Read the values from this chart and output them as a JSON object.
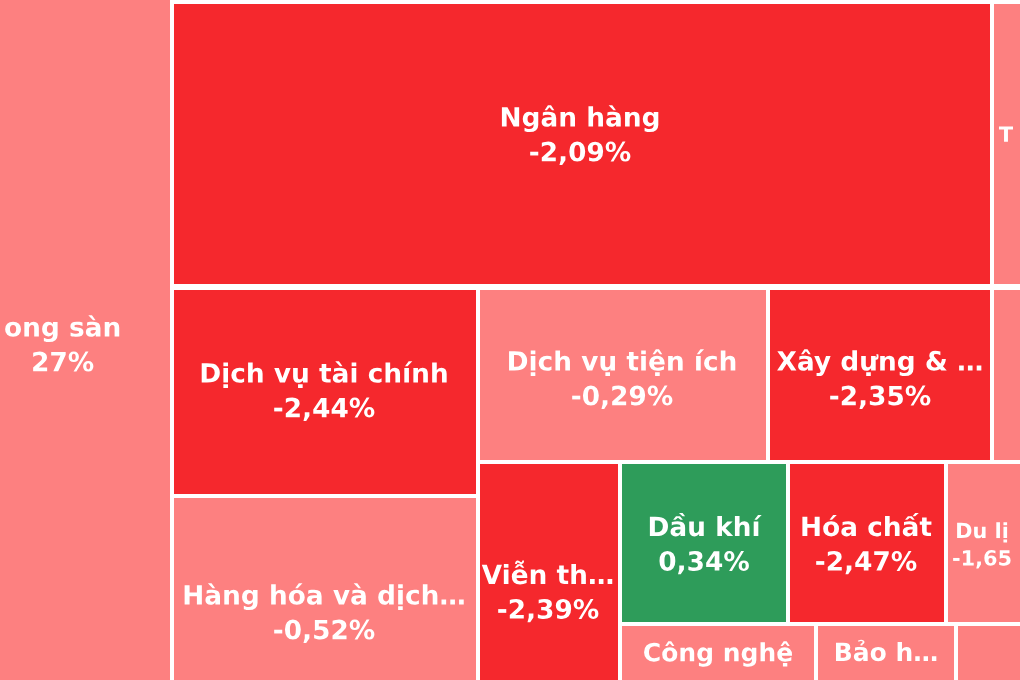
{
  "chart_data": {
    "type": "other",
    "categories": [
      "ong sàn",
      "Ngân hàng",
      "T",
      "Dịch vụ tài chính",
      "Dịch vụ tiện ích",
      "Xây dựng & …",
      null,
      "Hàng hóa và dịch…",
      "Viễn th…",
      "Dầu khí",
      "Hóa chất",
      "Du lị",
      "Công nghệ",
      "Bảo h…",
      null
    ],
    "values": [
      null,
      -2.09,
      null,
      -2.44,
      -0.29,
      -2.35,
      null,
      -0.52,
      -2.39,
      0.34,
      -2.47,
      -1.65,
      null,
      null,
      null
    ],
    "value_labels": [
      "27%",
      "-2,09%",
      null,
      "-2,44%",
      "-0,29%",
      "-2,35%",
      null,
      "-0,52%",
      "-2,39%",
      "0,34%",
      "-2,47%",
      "-1,65",
      null,
      null,
      null
    ],
    "colors": [
      "#fd8080",
      "#f5282d",
      "#fd8080",
      "#f0262b",
      "#fd8080",
      "#f0262b",
      "#fd8080",
      "#fd8080",
      "#f0262b",
      "#2e9c5a",
      "#f0262b",
      "#fd8080",
      "#fd8080",
      "#fd8080",
      "#fd8080"
    ]
  }
}
